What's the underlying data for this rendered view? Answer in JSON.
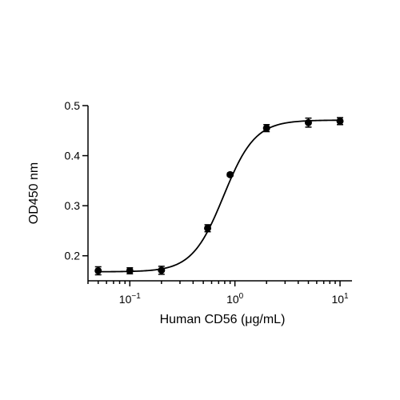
{
  "chart_data": {
    "type": "scatter",
    "xlabel": "Human CD56 (μg/mL)",
    "ylabel": "OD450 nm",
    "xscale": "log",
    "xlim": [
      0.04,
      13
    ],
    "ylim": [
      0.15,
      0.5
    ],
    "grid": false,
    "legend": "none",
    "color": "#000000",
    "x_ticks": [
      {
        "value": 0.1,
        "base": "10",
        "exp": "−1"
      },
      {
        "value": 1,
        "base": "10",
        "exp": "0"
      },
      {
        "value": 10,
        "base": "10",
        "exp": "1"
      }
    ],
    "y_ticks": [
      {
        "value": 0.2,
        "label": "0.2"
      },
      {
        "value": 0.3,
        "label": "0.3"
      },
      {
        "value": 0.4,
        "label": "0.4"
      },
      {
        "value": 0.5,
        "label": "0.5"
      }
    ],
    "series": [
      {
        "x": [
          0.05,
          0.1,
          0.2,
          0.55,
          0.9,
          2.0,
          5.0,
          10.0
        ],
        "y": [
          0.17,
          0.17,
          0.171,
          0.255,
          0.362,
          0.455,
          0.466,
          0.469
        ],
        "err": [
          0.008,
          0.006,
          0.008,
          0.007,
          0.003,
          0.007,
          0.009,
          0.007
        ]
      }
    ],
    "fit": {
      "model": "4PL",
      "bottom": 0.168,
      "top": 0.471,
      "ec50": 0.78,
      "hill": 2.9
    }
  }
}
